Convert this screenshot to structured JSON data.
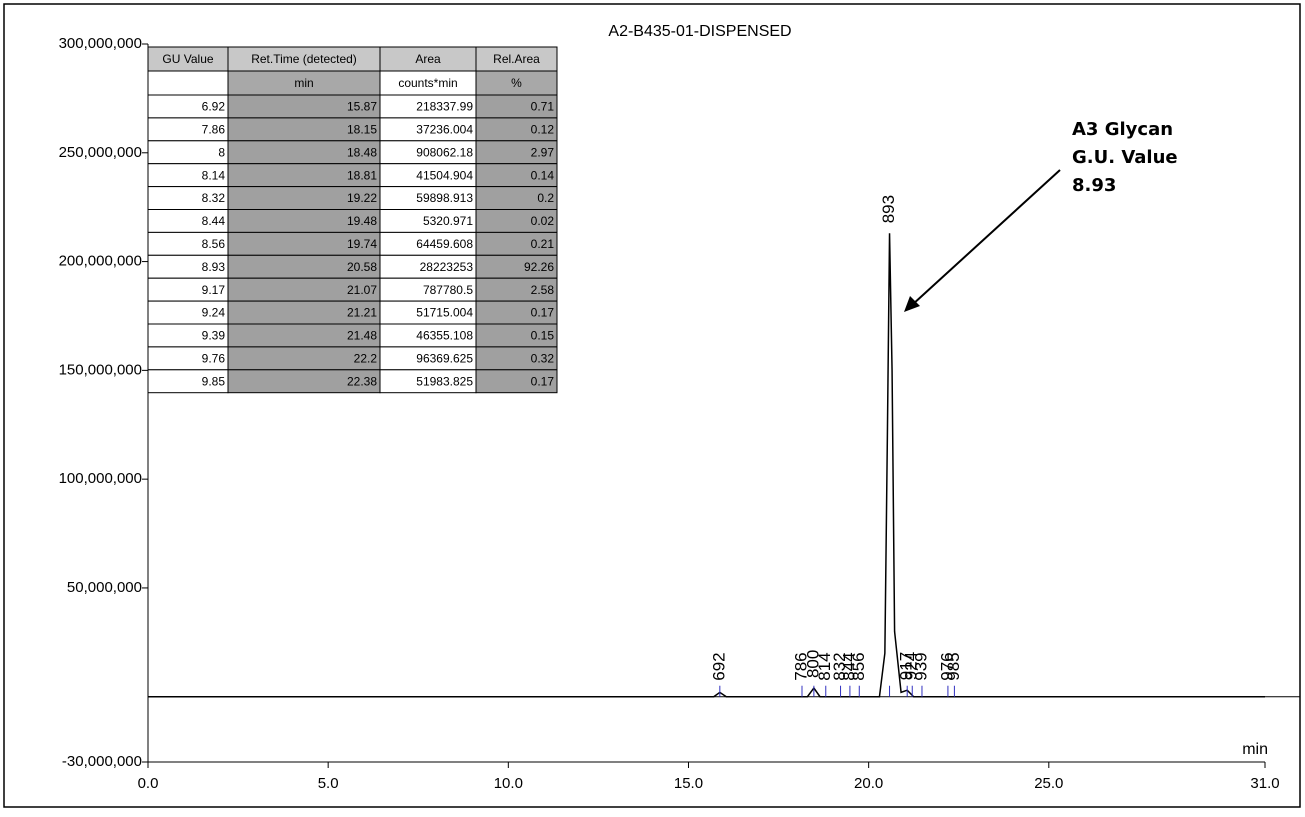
{
  "chart_data": {
    "type": "line",
    "title": "A2-B435-01-DISPENSED",
    "x_label": "min",
    "xlim": [
      0,
      31
    ],
    "xticks": [
      {
        "value": 0,
        "label": "0.0"
      },
      {
        "value": 5,
        "label": "5.0"
      },
      {
        "value": 10,
        "label": "10.0"
      },
      {
        "value": 15,
        "label": "15.0"
      },
      {
        "value": 20,
        "label": "20.0"
      },
      {
        "value": 25,
        "label": "25.0"
      },
      {
        "value": 31,
        "label": "31.0"
      }
    ],
    "ylim": [
      -30000000,
      300000000
    ],
    "yticks": [
      {
        "value": -30000000,
        "label": "-30,000,000"
      },
      {
        "value": 50000000,
        "label": "50,000,000"
      },
      {
        "value": 100000000,
        "label": "100,000,000"
      },
      {
        "value": 150000000,
        "label": "150,000,000"
      },
      {
        "value": 200000000,
        "label": "200,000,000"
      },
      {
        "value": 250000000,
        "label": "250,000,000"
      },
      {
        "value": 300000000,
        "label": "300,000,000"
      }
    ],
    "series": [
      {
        "color": "#000000",
        "x": [
          0,
          15.7,
          15.87,
          16.05,
          18.3,
          18.48,
          18.65,
          20.3,
          20.45,
          20.52,
          20.58,
          20.65,
          20.72,
          20.9,
          21.07,
          21.25,
          31
        ],
        "values": [
          0,
          0,
          2000000,
          0,
          0,
          4000000,
          0,
          0,
          20000000,
          120000000,
          213000000,
          150000000,
          30000000,
          2000000,
          3000000,
          0,
          0
        ]
      }
    ],
    "peak_labels": [
      {
        "label": "692",
        "x": 15.87
      },
      {
        "label": "786",
        "x": 18.15
      },
      {
        "label": "800",
        "x": 18.48
      },
      {
        "label": "814",
        "x": 18.81
      },
      {
        "label": "832",
        "x": 19.22
      },
      {
        "label": "844",
        "x": 19.48
      },
      {
        "label": "856",
        "x": 19.74
      },
      {
        "label": "893",
        "x": 20.58
      },
      {
        "label": "917",
        "x": 21.07
      },
      {
        "label": "924",
        "x": 21.21
      },
      {
        "label": "939",
        "x": 21.48
      },
      {
        "label": "976",
        "x": 22.2
      },
      {
        "label": "985",
        "x": 22.38
      }
    ],
    "annotation": [
      "A3 Glycan",
      "G.U. Value",
      "8.93"
    ],
    "table": {
      "columns": [
        "GU Value",
        "Ret.Time (detected)",
        "Area",
        "Rel.Area"
      ],
      "units": [
        "",
        "min",
        "counts*min",
        "%"
      ],
      "rows": [
        [
          "6.92",
          "15.87",
          "218337.99",
          "0.71"
        ],
        [
          "7.86",
          "18.15",
          "37236.004",
          "0.12"
        ],
        [
          "8",
          "18.48",
          "908062.18",
          "2.97"
        ],
        [
          "8.14",
          "18.81",
          "41504.904",
          "0.14"
        ],
        [
          "8.32",
          "19.22",
          "59898.913",
          "0.2"
        ],
        [
          "8.44",
          "19.48",
          "5320.971",
          "0.02"
        ],
        [
          "8.56",
          "19.74",
          "64459.608",
          "0.21"
        ],
        [
          "8.93",
          "20.58",
          "28223253",
          "92.26"
        ],
        [
          "9.17",
          "21.07",
          "787780.5",
          "2.58"
        ],
        [
          "9.24",
          "21.21",
          "51715.004",
          "0.17"
        ],
        [
          "9.39",
          "21.48",
          "46355.108",
          "0.15"
        ],
        [
          "9.76",
          "22.2",
          "96369.625",
          "0.32"
        ],
        [
          "9.85",
          "22.38",
          "51983.825",
          "0.17"
        ]
      ]
    }
  }
}
